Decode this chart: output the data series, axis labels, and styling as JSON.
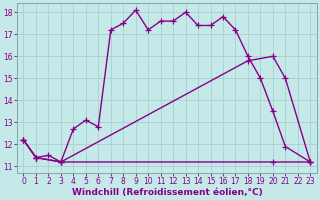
{
  "xlabel": "Windchill (Refroidissement éolien,°C)",
  "bg_color": "#c5e8e8",
  "grid_color": "#a8d0d0",
  "line_color": "#880088",
  "xlim_min": -0.5,
  "xlim_max": 23.5,
  "ylim_min": 10.7,
  "ylim_max": 18.4,
  "xticks": [
    0,
    1,
    2,
    3,
    4,
    5,
    6,
    7,
    8,
    9,
    10,
    11,
    12,
    13,
    14,
    15,
    16,
    17,
    18,
    19,
    20,
    21,
    22,
    23
  ],
  "yticks": [
    11,
    12,
    13,
    14,
    15,
    16,
    17,
    18
  ],
  "series1_x": [
    0,
    1,
    2,
    3,
    4,
    5,
    6,
    7,
    8,
    9,
    10,
    11,
    12,
    13,
    14,
    15,
    16,
    17,
    18,
    19,
    20,
    21,
    23
  ],
  "series1_y": [
    12.2,
    11.4,
    11.5,
    11.2,
    12.7,
    13.1,
    12.8,
    17.2,
    17.5,
    18.1,
    17.2,
    17.6,
    17.6,
    18.0,
    17.4,
    17.4,
    17.8,
    17.2,
    16.0,
    15.0,
    13.5,
    11.9,
    11.2
  ],
  "series2_x": [
    0,
    1,
    3,
    20,
    23
  ],
  "series2_y": [
    12.2,
    11.4,
    11.2,
    11.2,
    11.2
  ],
  "series3_x": [
    0,
    1,
    3,
    18,
    20,
    21,
    23
  ],
  "series3_y": [
    12.2,
    11.4,
    11.2,
    15.8,
    16.0,
    15.0,
    11.2
  ],
  "linewidth": 1.0,
  "marker_size": 4,
  "tick_fontsize": 5.5,
  "xlabel_fontsize": 6.5
}
